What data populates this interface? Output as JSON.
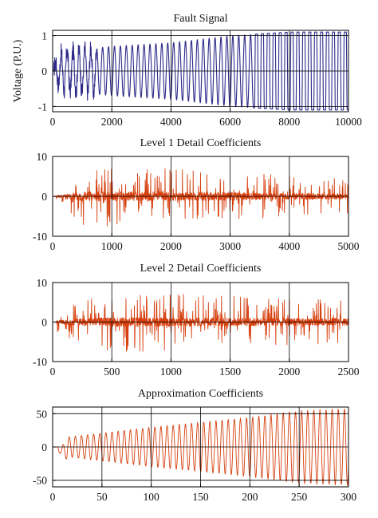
{
  "chart_data": [
    {
      "type": "line",
      "title": "Fault Signal",
      "ylabel": "Voltage (P.U.)",
      "xlabel": "",
      "xlim": [
        0,
        10000
      ],
      "ylim": [
        -1.15,
        1.15
      ],
      "xticks": [
        0,
        2000,
        4000,
        6000,
        8000,
        10000
      ],
      "yticks": [
        -1,
        0,
        1
      ],
      "grid": true,
      "color": "#2e2a8a",
      "series": [
        {
          "description_points": {
            "x": [
              0,
              300,
              2000,
              4000,
              6000,
              8000,
              10000
            ],
            "amplitude": [
              0.1,
              0.55,
              0.7,
              0.8,
              1.0,
              1.1,
              1.1
            ]
          }
        }
      ]
    },
    {
      "type": "line",
      "title": "Level 1 Detail Coefficients",
      "ylabel": "",
      "xlabel": "",
      "xlim": [
        0,
        5000
      ],
      "ylim": [
        -10,
        10
      ],
      "xticks": [
        0,
        1000,
        2000,
        3000,
        4000,
        5000
      ],
      "yticks": [
        -10,
        0,
        10
      ],
      "grid": true,
      "color": "#d6400f",
      "series": [
        {
          "description_points": {
            "x": [
              0,
              100,
              500,
              2500,
              5000
            ],
            "amplitude": [
              0,
              2,
              7,
              6,
              4
            ]
          }
        }
      ]
    },
    {
      "type": "line",
      "title": "Level 2 Detail Coefficients",
      "ylabel": "",
      "xlabel": "",
      "xlim": [
        0,
        2500
      ],
      "ylim": [
        -10,
        10
      ],
      "xticks": [
        0,
        500,
        1000,
        1500,
        2000,
        2500
      ],
      "yticks": [
        -10,
        0,
        10
      ],
      "grid": true,
      "color": "#d6400f",
      "series": [
        {
          "description_points": {
            "x": [
              0,
              50,
              500,
              1500,
              2500
            ],
            "amplitude": [
              0,
              3,
              7,
              6,
              5
            ]
          }
        }
      ]
    },
    {
      "type": "line",
      "title": "Approximation Coefficients",
      "ylabel": "",
      "xlabel": "",
      "xlim": [
        0,
        300
      ],
      "ylim": [
        -60,
        60
      ],
      "xticks": [
        0,
        50,
        100,
        150,
        200,
        250,
        300
      ],
      "yticks": [
        -50,
        0,
        50
      ],
      "grid": true,
      "color": "#d6400f",
      "series": [
        {
          "description_points": {
            "x": [
              0,
              8,
              15,
              100,
              200,
              250,
              300
            ],
            "amplitude": [
              0,
              5,
              15,
              30,
              45,
              55,
              58
            ]
          }
        }
      ]
    }
  ]
}
